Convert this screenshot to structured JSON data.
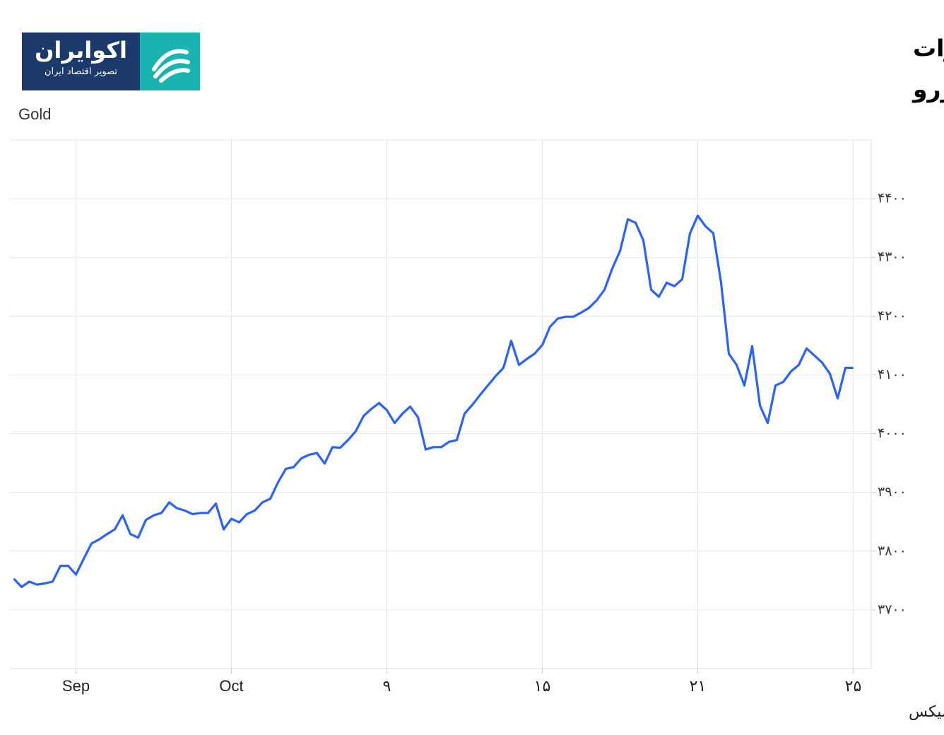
{
  "logo": {
    "name": "اکوایران",
    "tagline": "تصویر اقتصاد ایران"
  },
  "chart_data": {
    "type": "line",
    "title": [
      "کاهش زیان طلای جهانی با تقویت انتظارات",
      "برای کاهش نرخ بهره فدرال رزرو"
    ],
    "y_label": "Gold",
    "source": "منبع: تریدینگ اکونومیکس",
    "x": [
      -8,
      -7,
      -6,
      -5,
      -4,
      -3,
      -2,
      -1,
      0,
      1,
      2,
      3,
      4,
      5,
      6,
      7,
      8,
      9,
      10,
      11,
      12,
      13,
      14,
      15,
      16,
      17,
      18,
      19,
      20,
      21,
      22,
      23,
      24,
      25,
      26,
      27,
      28,
      29,
      30,
      31,
      32,
      33,
      34,
      35,
      36,
      37,
      38,
      39,
      40,
      41,
      42,
      43,
      44,
      45,
      46,
      47,
      48,
      49,
      50,
      51,
      52,
      53,
      54,
      55,
      56,
      57,
      58,
      59,
      60,
      61,
      62,
      63,
      64,
      65,
      66,
      67,
      68,
      69,
      70,
      71,
      72,
      73,
      74,
      75,
      76,
      77,
      78,
      79,
      80,
      81,
      82,
      83,
      84,
      85,
      86,
      87,
      88,
      89,
      90,
      91,
      92,
      93,
      94,
      95,
      96,
      97,
      98,
      99,
      100
    ],
    "series": [
      {
        "name": "Gold",
        "color": "#2962ff",
        "values": [
          3753,
          3739,
          3748,
          3743,
          3745,
          3748,
          3775,
          3775,
          3760,
          3787,
          3813,
          3820,
          3829,
          3837,
          3861,
          3829,
          3823,
          3853,
          3861,
          3865,
          3883,
          3873,
          3869,
          3863,
          3865,
          3865,
          3881,
          3837,
          3855,
          3849,
          3863,
          3869,
          3883,
          3889,
          3917,
          3940,
          3943,
          3958,
          3964,
          3967,
          3949,
          3977,
          3976,
          3989,
          4004,
          4030,
          4042,
          4052,
          4040,
          4018,
          4034,
          4046,
          4028,
          3973,
          3977,
          3977,
          3986,
          3989,
          4034,
          4049,
          4066,
          4082,
          4098,
          4112,
          4158,
          4117,
          4127,
          4136,
          4151,
          4182,
          4196,
          4199,
          4199,
          4206,
          4214,
          4227,
          4245,
          4281,
          4311,
          4365,
          4359,
          4329,
          4245,
          4233,
          4257,
          4251,
          4263,
          4341,
          4371,
          4353,
          4341,
          4257,
          4136,
          4117,
          4082,
          4149,
          4048,
          4018,
          4082,
          4088,
          4106,
          4117,
          4145,
          4133,
          4121,
          4102,
          4060,
          4112,
          4112
        ]
      }
    ],
    "xlim": [
      -8.5,
      102.5
    ],
    "xticks": [
      {
        "value": 0,
        "label": "Sep"
      },
      {
        "value": 20,
        "label": "Oct"
      },
      {
        "value": 40,
        "label": "۹"
      },
      {
        "value": 60,
        "label": "۱۵"
      },
      {
        "value": 80,
        "label": "۲۱"
      },
      {
        "value": 100,
        "label": "۲۵"
      }
    ],
    "ylim": [
      3600,
      4500
    ],
    "yticks": [
      {
        "value": 3700,
        "label": "۳۷۰۰"
      },
      {
        "value": 3800,
        "label": "۳۸۰۰"
      },
      {
        "value": 3900,
        "label": "۳۹۰۰"
      },
      {
        "value": 4000,
        "label": "۴۰۰۰"
      },
      {
        "value": 4100,
        "label": "۴۱۰۰"
      },
      {
        "value": 4200,
        "label": "۴۲۰۰"
      },
      {
        "value": 4300,
        "label": "۴۳۰۰"
      },
      {
        "value": 4400,
        "label": "۴۴۰۰"
      }
    ],
    "grid": true
  }
}
